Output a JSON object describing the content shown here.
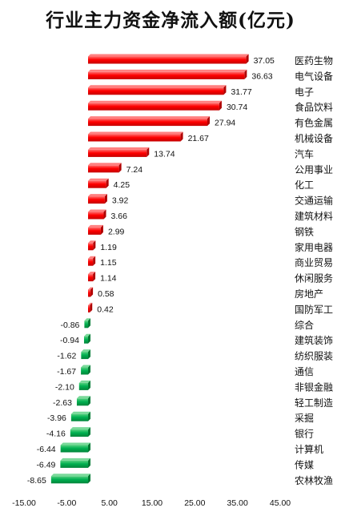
{
  "chart_data": {
    "type": "bar",
    "orientation": "horizontal",
    "title": "行业主力资金净流入额(亿元)",
    "categories": [
      "医药生物",
      "电气设备",
      "电子",
      "食品饮料",
      "有色金属",
      "机械设备",
      "汽车",
      "公用事业",
      "化工",
      "交通运输",
      "建筑材料",
      "钢铁",
      "家用电器",
      "商业贸易",
      "休闲服务",
      "房地产",
      "国防军工",
      "综合",
      "建筑装饰",
      "纺织服装",
      "通信",
      "非银金融",
      "轻工制造",
      "采掘",
      "银行",
      "计算机",
      "传媒",
      "农林牧渔"
    ],
    "values": [
      37.05,
      36.63,
      31.77,
      30.74,
      27.94,
      21.67,
      13.74,
      7.24,
      4.25,
      3.92,
      3.66,
      2.99,
      1.19,
      1.15,
      1.14,
      0.58,
      0.42,
      -0.86,
      -0.94,
      -1.62,
      -1.67,
      -2.1,
      -2.63,
      -3.96,
      -4.16,
      -6.44,
      -6.49,
      -8.65
    ],
    "value_labels": [
      "37.05",
      "36.63",
      "31.77",
      "30.74",
      "27.94",
      "21.67",
      "13.74",
      "7.24",
      "4.25",
      "3.92",
      "3.66",
      "2.99",
      "1.19",
      "1.15",
      "1.14",
      "0.58",
      "0.42",
      "-0.86",
      "-0.94",
      "-1.62",
      "-1.67",
      "-2.10",
      "-2.63",
      "-3.96",
      "-4.16",
      "-6.44",
      "-6.49",
      "-8.65"
    ],
    "xlim": [
      -15,
      45
    ],
    "xticks": [
      "-15.00",
      "-5.00",
      "5.00",
      "15.00",
      "25.00",
      "35.00",
      "45.00"
    ],
    "xtick_values": [
      -15,
      -5,
      5,
      15,
      25,
      35,
      45
    ],
    "grid": false,
    "colors": {
      "positive": "#ff0000",
      "negative": "#00b050"
    }
  }
}
